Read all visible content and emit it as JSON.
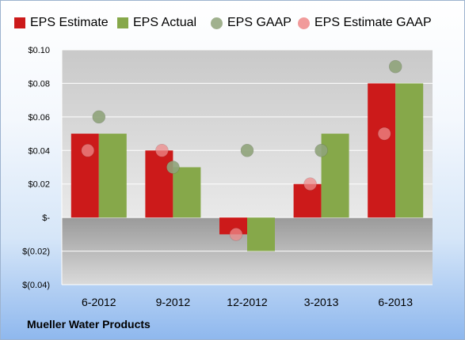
{
  "company": "Mueller Water Products",
  "colors": {
    "eps_estimate": "#cc1a1a",
    "eps_actual": "#86a84a",
    "eps_gaap": "#8fa37a",
    "eps_estimate_gaap": "#ee8a8a"
  },
  "legend": [
    {
      "label": "EPS Estimate",
      "kind": "square",
      "color": "#cc1a1a"
    },
    {
      "label": "EPS Actual",
      "kind": "square",
      "color": "#86a84a"
    },
    {
      "label": "EPS GAAP",
      "kind": "circle",
      "color": "#8fa37a"
    },
    {
      "label": "EPS Estimate GAAP",
      "kind": "circle",
      "color": "#ee8a8a"
    }
  ],
  "chart_data": {
    "type": "bar",
    "categories": [
      "6-2012",
      "9-2012",
      "12-2012",
      "3-2013",
      "6-2013"
    ],
    "series": [
      {
        "name": "EPS Estimate",
        "kind": "bar",
        "values": [
          0.05,
          0.04,
          -0.01,
          0.02,
          0.08
        ]
      },
      {
        "name": "EPS Actual",
        "kind": "bar",
        "values": [
          0.05,
          0.03,
          -0.02,
          0.05,
          0.08
        ]
      },
      {
        "name": "EPS GAAP",
        "kind": "scatter",
        "values": [
          0.06,
          0.03,
          0.04,
          0.04,
          0.09
        ]
      },
      {
        "name": "EPS Estimate GAAP",
        "kind": "scatter",
        "values": [
          0.04,
          0.04,
          -0.01,
          0.02,
          0.05
        ]
      }
    ],
    "ylim": [
      -0.04,
      0.1
    ],
    "yticks": [
      0.1,
      0.08,
      0.06,
      0.04,
      0.02,
      0,
      -0.02,
      -0.04
    ],
    "ytick_labels": [
      "$0.10",
      "$0.08",
      "$0.06",
      "$0.04",
      "$0.02",
      "$-",
      "$(0.02)",
      "$(0.04)"
    ],
    "grid": true,
    "legend_position": "top"
  }
}
